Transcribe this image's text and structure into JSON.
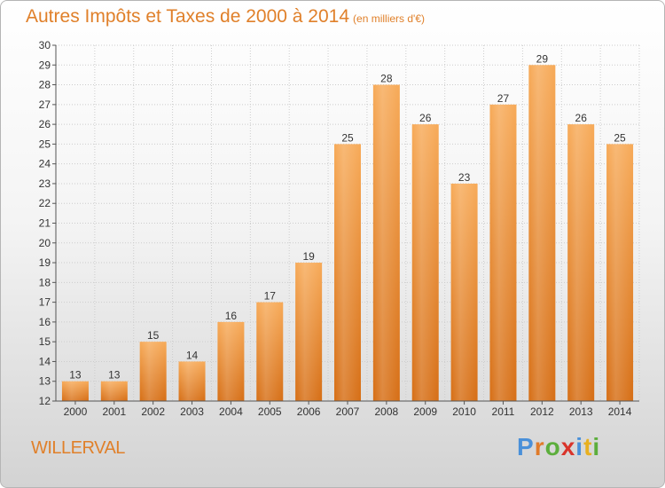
{
  "header": {
    "title": "Autres Impôts et Taxes de 2000 à 2014",
    "unit": "(en milliers d'€)"
  },
  "commune": "WILLERVAL",
  "logo": {
    "text": "Proxiti",
    "letters": [
      {
        "ch": "P",
        "color": "#4a90d9"
      },
      {
        "ch": "r",
        "color": "#e07b2a"
      },
      {
        "ch": "o",
        "color": "#5cae3c"
      },
      {
        "ch": "x",
        "color": "#d9342b"
      },
      {
        "ch": "i",
        "color": "#4a90d9"
      },
      {
        "ch": "t",
        "color": "#e8b020"
      },
      {
        "ch": "i",
        "color": "#5cae3c"
      }
    ]
  },
  "colors": {
    "title": "#e0802a",
    "bar_top": "#f7aa58",
    "bar_bottom": "#d66e15",
    "grid": "#cccccc"
  },
  "chart_data": {
    "type": "bar",
    "title": "Autres Impôts et Taxes de 2000 à 2014",
    "subtitle": "(en milliers d'€)",
    "categories": [
      "2000",
      "2001",
      "2002",
      "2003",
      "2004",
      "2005",
      "2006",
      "2007",
      "2008",
      "2009",
      "2010",
      "2011",
      "2012",
      "2013",
      "2014"
    ],
    "values": [
      13,
      13,
      15,
      14,
      16,
      17,
      19,
      25,
      28,
      26,
      23,
      27,
      29,
      26,
      25
    ],
    "ylim": [
      12,
      30
    ],
    "yticks": [
      12,
      13,
      14,
      15,
      16,
      17,
      18,
      19,
      20,
      21,
      22,
      23,
      24,
      25,
      26,
      27,
      28,
      29,
      30
    ],
    "grid": true,
    "xlabel": "",
    "ylabel": ""
  }
}
